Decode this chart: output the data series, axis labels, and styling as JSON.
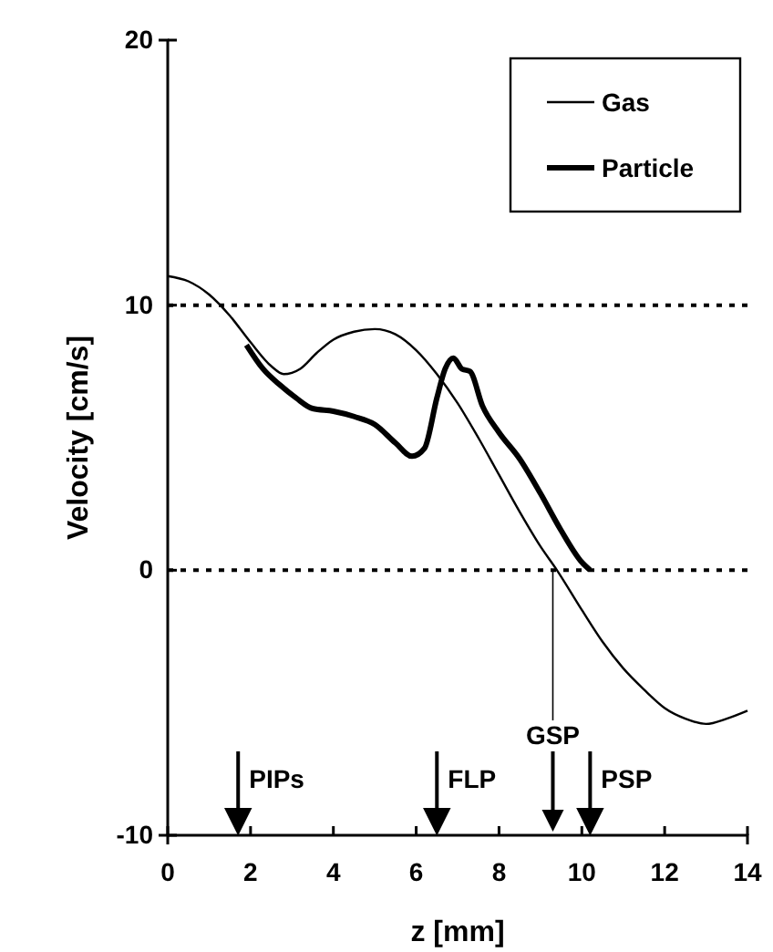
{
  "chart_data": {
    "type": "line",
    "xlabel": "z [mm]",
    "ylabel": "Velocity [cm/s]",
    "xlim": [
      0,
      14
    ],
    "xticks": [
      0,
      2,
      4,
      6,
      8,
      10,
      12,
      14
    ],
    "ylim": [
      -10,
      20
    ],
    "yticks": [
      -10,
      0,
      10,
      20
    ],
    "legend": "top right",
    "series": [
      {
        "name": "Gas",
        "color": "#000000",
        "x": [
          0,
          0.5,
          1,
          1.5,
          2,
          2.5,
          2.8,
          3.2,
          3.6,
          4,
          4.5,
          5,
          5.5,
          6,
          6.5,
          7,
          7.5,
          8,
          8.5,
          9,
          9.4,
          10,
          10.5,
          11,
          11.5,
          12,
          12.5,
          13,
          13.5,
          14
        ],
        "values": [
          11.1,
          10.9,
          10.4,
          9.6,
          8.6,
          7.7,
          7.4,
          7.6,
          8.2,
          8.7,
          9.0,
          9.1,
          8.9,
          8.3,
          7.4,
          6.3,
          5.0,
          3.6,
          2.2,
          0.9,
          0,
          -1.5,
          -2.7,
          -3.7,
          -4.5,
          -5.2,
          -5.6,
          -5.8,
          -5.6,
          -5.3
        ]
      },
      {
        "name": "Particle",
        "color": "#000000",
        "x": [
          1.9,
          2.3,
          2.7,
          3.1,
          3.5,
          4,
          4.5,
          5,
          5.5,
          5.9,
          6.2,
          6.5,
          6.7,
          6.9,
          7.1,
          7.3,
          7.6,
          8,
          8.5,
          9,
          9.5,
          10,
          10.2
        ],
        "values": [
          8.5,
          7.6,
          7.0,
          6.5,
          6.1,
          6.0,
          5.8,
          5.5,
          4.8,
          4.3,
          4.6,
          6.5,
          7.6,
          8.0,
          7.6,
          7.5,
          6.2,
          5.2,
          4.2,
          2.9,
          1.5,
          0.3,
          0
        ]
      }
    ],
    "ref_lines": [
      {
        "axis": "y",
        "value": 10,
        "line_style": "dotted"
      },
      {
        "axis": "y",
        "value": 0,
        "line_style": "dotted"
      },
      {
        "axis": "x",
        "value": 1.7,
        "label": "PIPs"
      },
      {
        "axis": "x",
        "value": 6.5,
        "label": "FLP"
      },
      {
        "axis": "x",
        "value": 10.2,
        "label": "PSP"
      }
    ],
    "annotations": [
      {
        "text": "GSP",
        "x": 9.3,
        "y": 0
      }
    ]
  }
}
